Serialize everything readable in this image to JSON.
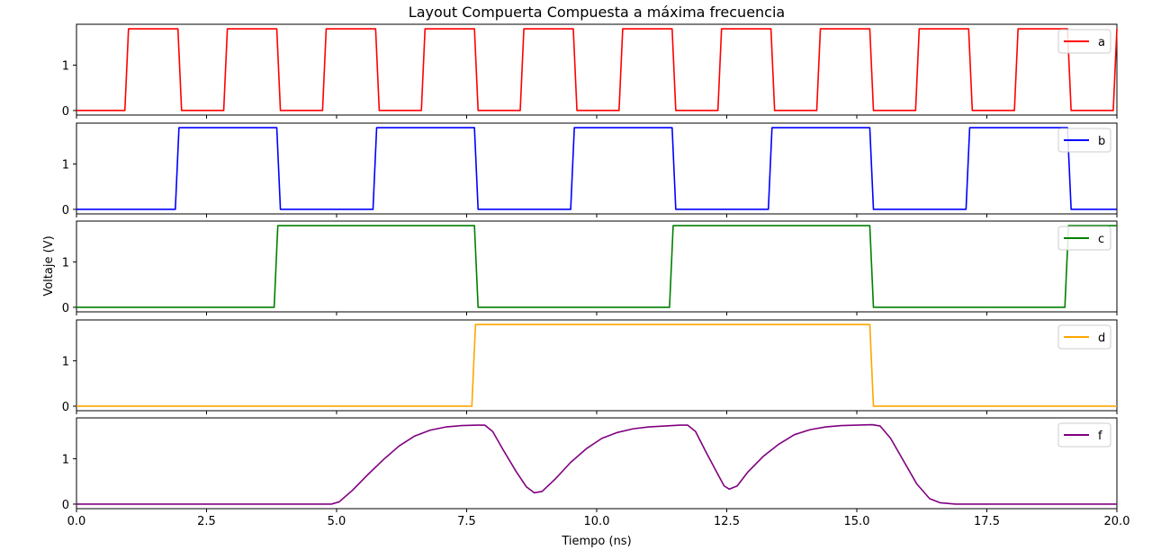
{
  "chart_data": {
    "type": "line",
    "title": "Layout Compuerta Compuesta a máxima frecuencia",
    "xlabel": "Tiempo (ns)",
    "ylabel": "Voltaje (V)",
    "xlim": [
      0,
      20
    ],
    "ylim": [
      -0.1,
      1.9
    ],
    "x_ticks": [
      "0.0",
      "2.5",
      "5.0",
      "7.5",
      "10.0",
      "12.5",
      "15.0",
      "17.5",
      "20.0"
    ],
    "y_ticks": [
      "0",
      "1"
    ],
    "x_tick_values": [
      0,
      2.5,
      5,
      7.5,
      10,
      12.5,
      15,
      17.5,
      20
    ],
    "y_tick_values": [
      0,
      1
    ],
    "grid": false,
    "legend_position": "top-right",
    "panels": [
      {
        "name": "a",
        "color": "#ff0000",
        "points": [
          [
            0,
            0
          ],
          [
            0.93,
            0
          ],
          [
            1.0,
            1.8
          ],
          [
            1.95,
            1.8
          ],
          [
            2.02,
            0
          ],
          [
            2.83,
            0
          ],
          [
            2.9,
            1.8
          ],
          [
            3.85,
            1.8
          ],
          [
            3.92,
            0
          ],
          [
            4.73,
            0
          ],
          [
            4.8,
            1.8
          ],
          [
            5.75,
            1.8
          ],
          [
            5.82,
            0
          ],
          [
            6.63,
            0
          ],
          [
            6.7,
            1.8
          ],
          [
            7.65,
            1.8
          ],
          [
            7.72,
            0
          ],
          [
            8.53,
            0
          ],
          [
            8.6,
            1.8
          ],
          [
            9.55,
            1.8
          ],
          [
            9.62,
            0
          ],
          [
            10.43,
            0
          ],
          [
            10.5,
            1.8
          ],
          [
            11.45,
            1.8
          ],
          [
            11.52,
            0
          ],
          [
            12.33,
            0
          ],
          [
            12.4,
            1.8
          ],
          [
            13.35,
            1.8
          ],
          [
            13.42,
            0
          ],
          [
            14.23,
            0
          ],
          [
            14.3,
            1.8
          ],
          [
            15.25,
            1.8
          ],
          [
            15.32,
            0
          ],
          [
            16.13,
            0
          ],
          [
            16.2,
            1.8
          ],
          [
            17.15,
            1.8
          ],
          [
            17.22,
            0
          ],
          [
            18.03,
            0
          ],
          [
            18.1,
            1.8
          ],
          [
            19.05,
            1.8
          ],
          [
            19.12,
            0
          ],
          [
            19.93,
            0
          ],
          [
            20.0,
            1.8
          ]
        ]
      },
      {
        "name": "b",
        "color": "#0000ff",
        "points": [
          [
            0,
            0
          ],
          [
            1.9,
            0
          ],
          [
            1.97,
            1.8
          ],
          [
            3.85,
            1.8
          ],
          [
            3.92,
            0
          ],
          [
            5.7,
            0
          ],
          [
            5.77,
            1.8
          ],
          [
            7.65,
            1.8
          ],
          [
            7.72,
            0
          ],
          [
            9.5,
            0
          ],
          [
            9.57,
            1.8
          ],
          [
            11.45,
            1.8
          ],
          [
            11.52,
            0
          ],
          [
            13.3,
            0
          ],
          [
            13.37,
            1.8
          ],
          [
            15.25,
            1.8
          ],
          [
            15.32,
            0
          ],
          [
            17.1,
            0
          ],
          [
            17.17,
            1.8
          ],
          [
            19.05,
            1.8
          ],
          [
            19.12,
            0
          ],
          [
            20,
            0
          ]
        ]
      },
      {
        "name": "c",
        "color": "#008000",
        "points": [
          [
            0,
            0
          ],
          [
            3.8,
            0
          ],
          [
            3.87,
            1.8
          ],
          [
            7.65,
            1.8
          ],
          [
            7.72,
            0
          ],
          [
            11.4,
            0
          ],
          [
            11.47,
            1.8
          ],
          [
            15.25,
            1.8
          ],
          [
            15.32,
            0
          ],
          [
            19.0,
            0
          ],
          [
            19.07,
            1.8
          ],
          [
            20,
            1.8
          ]
        ]
      },
      {
        "name": "d",
        "color": "#ffa500",
        "points": [
          [
            0,
            0
          ],
          [
            7.6,
            0
          ],
          [
            7.67,
            1.8
          ],
          [
            15.25,
            1.8
          ],
          [
            15.32,
            0
          ],
          [
            20,
            0
          ]
        ]
      },
      {
        "name": "f",
        "color": "#800080",
        "points": [
          [
            0,
            0
          ],
          [
            4.9,
            0
          ],
          [
            5.05,
            0.05
          ],
          [
            5.3,
            0.3
          ],
          [
            5.6,
            0.65
          ],
          [
            5.9,
            0.98
          ],
          [
            6.2,
            1.28
          ],
          [
            6.5,
            1.5
          ],
          [
            6.8,
            1.63
          ],
          [
            7.1,
            1.7
          ],
          [
            7.4,
            1.73
          ],
          [
            7.7,
            1.74
          ],
          [
            7.85,
            1.74
          ],
          [
            8.0,
            1.6
          ],
          [
            8.2,
            1.2
          ],
          [
            8.45,
            0.72
          ],
          [
            8.65,
            0.38
          ],
          [
            8.8,
            0.25
          ],
          [
            8.95,
            0.28
          ],
          [
            9.2,
            0.55
          ],
          [
            9.5,
            0.92
          ],
          [
            9.8,
            1.22
          ],
          [
            10.1,
            1.45
          ],
          [
            10.4,
            1.58
          ],
          [
            10.7,
            1.66
          ],
          [
            11.0,
            1.7
          ],
          [
            11.3,
            1.72
          ],
          [
            11.6,
            1.74
          ],
          [
            11.75,
            1.74
          ],
          [
            11.9,
            1.6
          ],
          [
            12.1,
            1.15
          ],
          [
            12.3,
            0.72
          ],
          [
            12.45,
            0.4
          ],
          [
            12.55,
            0.33
          ],
          [
            12.7,
            0.4
          ],
          [
            12.9,
            0.7
          ],
          [
            13.2,
            1.05
          ],
          [
            13.5,
            1.32
          ],
          [
            13.8,
            1.53
          ],
          [
            14.1,
            1.64
          ],
          [
            14.4,
            1.7
          ],
          [
            14.7,
            1.73
          ],
          [
            15.0,
            1.74
          ],
          [
            15.3,
            1.75
          ],
          [
            15.45,
            1.72
          ],
          [
            15.65,
            1.45
          ],
          [
            15.9,
            0.95
          ],
          [
            16.15,
            0.45
          ],
          [
            16.4,
            0.12
          ],
          [
            16.6,
            0.03
          ],
          [
            16.9,
            0
          ],
          [
            20,
            0
          ]
        ]
      }
    ]
  }
}
